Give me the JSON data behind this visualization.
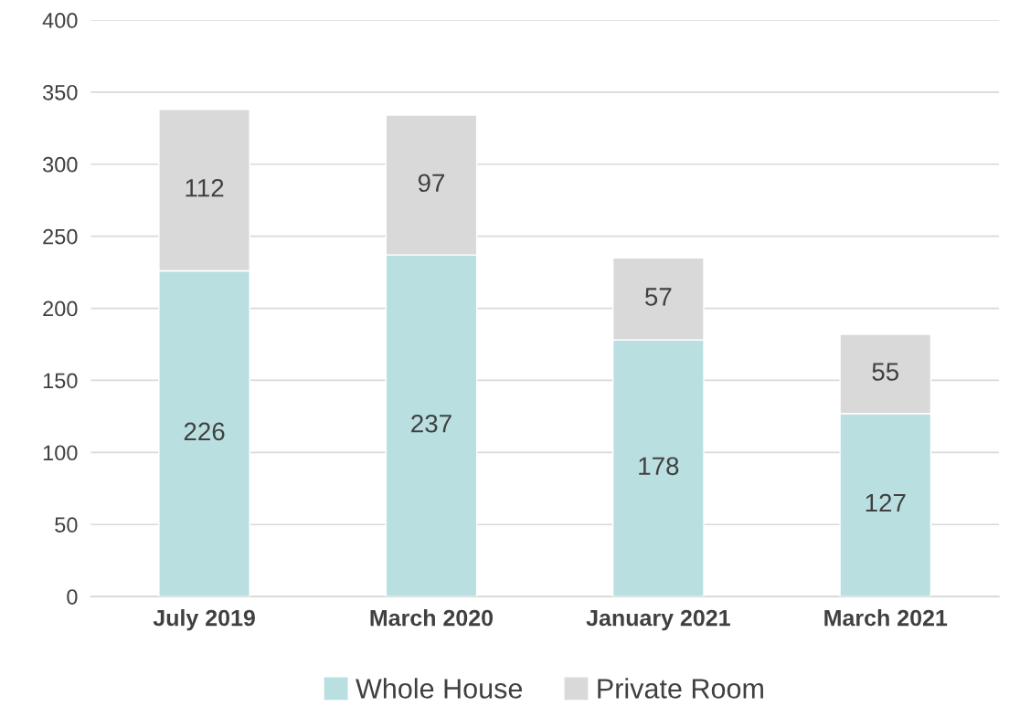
{
  "chart_data": {
    "type": "bar",
    "stacked": true,
    "categories": [
      "July 2019",
      "March 2020",
      "January 2021",
      "March 2021"
    ],
    "series": [
      {
        "name": "Whole House",
        "color": "#b9dfe1",
        "values": [
          226,
          237,
          178,
          127
        ]
      },
      {
        "name": "Private Room",
        "color": "#d9d9d9",
        "values": [
          112,
          97,
          57,
          55
        ]
      }
    ],
    "ylim": [
      0,
      400
    ],
    "yticks": [
      0,
      50,
      100,
      150,
      200,
      250,
      300,
      350,
      400
    ],
    "grid": "y",
    "legend": "bottom",
    "data_labels": true
  }
}
